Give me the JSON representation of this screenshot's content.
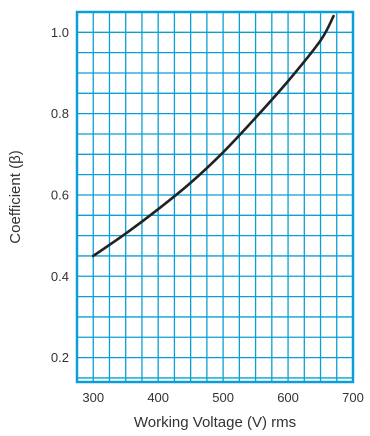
{
  "chart_data": {
    "type": "line",
    "title": "",
    "xlabel": "Working Voltage (V) rms",
    "ylabel": "Coefficient (β)",
    "xlim": [
      275,
      700
    ],
    "ylim": [
      0.14,
      1.05
    ],
    "x_ticks": [
      300,
      400,
      500,
      600,
      700
    ],
    "x_tick_labels": [
      "300",
      "400",
      "500",
      "600",
      "700"
    ],
    "y_ticks": [
      0.2,
      0.4,
      0.6,
      0.8,
      1.0
    ],
    "y_tick_labels": [
      "0.2",
      "0.4",
      "0.6",
      "0.8",
      "1.0"
    ],
    "grid": true,
    "grid_x_step": 25,
    "grid_y_step": 0.05,
    "colors": {
      "grid": "#0a9fd8",
      "line": "#222222",
      "text": "#333333"
    },
    "series": [
      {
        "x": [
          300,
          350,
          400,
          450,
          500,
          550,
          600,
          650,
          670
        ],
        "values": [
          0.45,
          0.505,
          0.565,
          0.63,
          0.705,
          0.79,
          0.88,
          0.98,
          1.04
        ]
      }
    ]
  }
}
